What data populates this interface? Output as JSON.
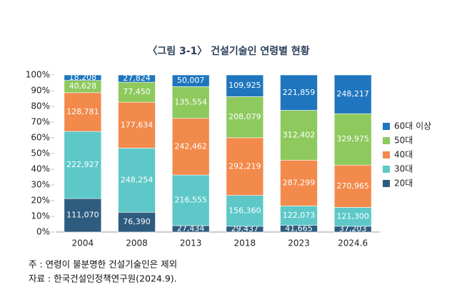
{
  "chart_data": {
    "type": "bar",
    "stacking": "percent",
    "title": "〈그림 3-1〉 건설기술인 연령별 현황",
    "categories": [
      "2004",
      "2008",
      "2013",
      "2018",
      "2023",
      "2024.6"
    ],
    "series": [
      {
        "name": "20대",
        "color": "#2e5c7e",
        "values": [
          111070,
          76390,
          27434,
          29437,
          41665,
          37203
        ],
        "value_labels": [
          "111,070",
          "76,390",
          "27,434",
          "29,437",
          "41,665",
          "37,203"
        ]
      },
      {
        "name": "30대",
        "color": "#5ec8c8",
        "values": [
          222927,
          248254,
          216555,
          156360,
          122073,
          121300
        ],
        "value_labels": [
          "222,927",
          "248,254",
          "216,555",
          "156,360",
          "122,073",
          "121,300"
        ]
      },
      {
        "name": "40대",
        "color": "#f28a4c",
        "values": [
          128781,
          177634,
          242462,
          292219,
          287299,
          270965
        ],
        "value_labels": [
          "128,781",
          "177,634",
          "242,462",
          "292,219",
          "287,299",
          "270,965"
        ]
      },
      {
        "name": "50대",
        "color": "#8ec95e",
        "values": [
          40628,
          77450,
          135554,
          208079,
          312402,
          329975
        ],
        "value_labels": [
          "40,628",
          "77,450",
          "135,554",
          "208,079",
          "312,402",
          "329,975"
        ]
      },
      {
        "name": "60대 이상",
        "color": "#1f76bf",
        "values": [
          18208,
          27824,
          50007,
          109925,
          221859,
          248217
        ],
        "value_labels": [
          "18,208",
          "27,824",
          "50,007",
          "109,925",
          "221,859",
          "248,217"
        ]
      }
    ],
    "ylim": [
      0,
      100
    ],
    "yticks": [
      {
        "value": 0,
        "label": "0%"
      },
      {
        "value": 10,
        "label": "10%"
      },
      {
        "value": 20,
        "label": "20%"
      },
      {
        "value": 30,
        "label": "30%"
      },
      {
        "value": 40,
        "label": "40%"
      },
      {
        "value": 50,
        "label": "50%"
      },
      {
        "value": 60,
        "label": "60%"
      },
      {
        "value": 70,
        "label": "70%"
      },
      {
        "value": 80,
        "label": "80%"
      },
      {
        "value": 90,
        "label": "90%"
      },
      {
        "value": 100,
        "label": "100%"
      }
    ],
    "legend": "right",
    "notes": [
      "주 : 연령이 불분명한 건설기술인은 제외",
      "자료 : 한국건설인정책연구원(2024.9)."
    ]
  }
}
